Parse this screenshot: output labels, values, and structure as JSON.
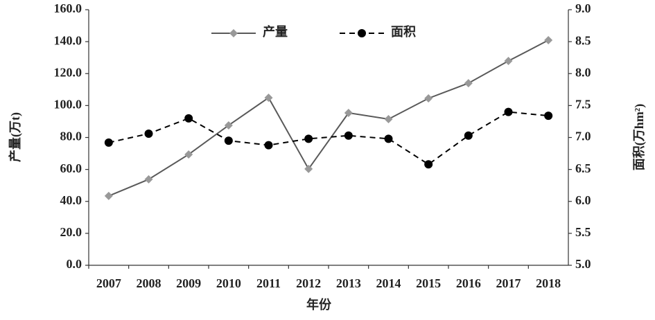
{
  "chart_data": {
    "type": "line",
    "x_label": "年份",
    "y_label": "产量(万t)",
    "y2_label": "面积(万hm²)",
    "categories": [
      "2007",
      "2008",
      "2009",
      "2010",
      "2011",
      "2012",
      "2013",
      "2014",
      "2015",
      "2016",
      "2017",
      "2018"
    ],
    "series": [
      {
        "name": "产量",
        "color": "#595959",
        "marker_color": "#999999",
        "marker": "diamond",
        "dash": false,
        "values": [
          43.4,
          53.8,
          69.4,
          87.6,
          104.9,
          60.3,
          95.4,
          91.5,
          104.5,
          114.0,
          127.9,
          140.9
        ]
      },
      {
        "name": "面积",
        "color": "#000000",
        "marker_color": "#000000",
        "marker": "circle",
        "dash": true,
        "axis": "y2",
        "values": [
          6.92,
          7.06,
          7.3,
          6.95,
          6.88,
          6.98,
          7.03,
          6.98,
          6.58,
          7.03,
          7.4,
          7.34
        ]
      }
    ],
    "ylim": [
      0,
      160
    ],
    "yticks": [
      {
        "value": 0,
        "label": "0.0"
      },
      {
        "value": 20,
        "label": "20.0"
      },
      {
        "value": 40,
        "label": "40.0"
      },
      {
        "value": 60,
        "label": "60.0"
      },
      {
        "value": 80,
        "label": "80.0"
      },
      {
        "value": 100,
        "label": "100.0"
      },
      {
        "value": 120,
        "label": "120.0"
      },
      {
        "value": 140,
        "label": "140.0"
      },
      {
        "value": 160,
        "label": "160.0"
      }
    ],
    "y2lim": [
      5,
      9
    ],
    "y2ticks": [
      {
        "value": 5,
        "label": "5.0"
      },
      {
        "value": 5.5,
        "label": "5.5"
      },
      {
        "value": 6,
        "label": "6.0"
      },
      {
        "value": 6.5,
        "label": "6.5"
      },
      {
        "value": 7,
        "label": "7.0"
      },
      {
        "value": 7.5,
        "label": "7.5"
      },
      {
        "value": 8,
        "label": "8.0"
      },
      {
        "value": 8.5,
        "label": "8.5"
      },
      {
        "value": 9,
        "label": "9.0"
      }
    ],
    "grid": false,
    "legend": "top"
  }
}
